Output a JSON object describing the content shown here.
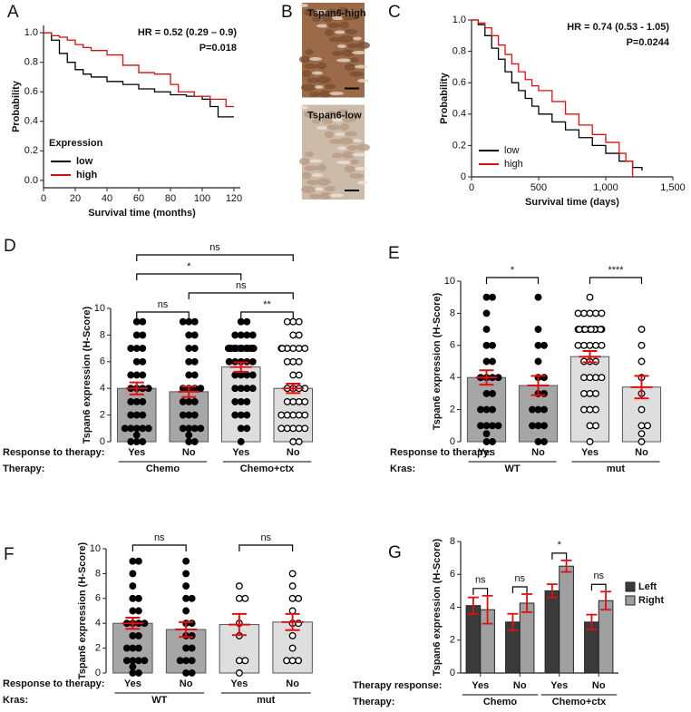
{
  "chart_data": [
    {
      "type": "line",
      "label": "A",
      "xlabel": "Survival time (months)",
      "ylabel": "Probability",
      "annotations": [
        "HR = 0.52 (0.29 – 0.9)",
        "P=0.018"
      ],
      "legend_title": "Expression",
      "legend": "lower left",
      "xlim": [
        0,
        124
      ],
      "ylim": [
        -0.05,
        1.05
      ],
      "xticks": [
        0,
        20,
        40,
        60,
        80,
        100,
        120
      ],
      "yticks": [
        {
          "value": 0,
          "label": "0.0"
        },
        0.2,
        0.4,
        0.6,
        0.8,
        {
          "value": 1,
          "label": "1.0"
        }
      ],
      "series": [
        {
          "name": "low",
          "color": "#000000",
          "x": [
            0,
            5,
            10,
            15,
            20,
            25,
            30,
            40,
            50,
            60,
            70,
            80,
            90,
            100,
            105,
            110,
            120
          ],
          "values": [
            1,
            0.95,
            0.86,
            0.8,
            0.75,
            0.72,
            0.7,
            0.67,
            0.65,
            0.62,
            0.6,
            0.58,
            0.57,
            0.55,
            0.5,
            0.43,
            0.43
          ]
        },
        {
          "name": "high",
          "color": "#cc1111",
          "x": [
            0,
            5,
            10,
            15,
            20,
            25,
            30,
            40,
            50,
            60,
            70,
            80,
            85,
            95,
            105,
            115,
            120
          ],
          "values": [
            1,
            0.98,
            0.97,
            0.95,
            0.92,
            0.9,
            0.88,
            0.85,
            0.78,
            0.73,
            0.72,
            0.65,
            0.6,
            0.57,
            0.55,
            0.5,
            0.5
          ]
        }
      ]
    },
    {
      "type": "image",
      "label": "B",
      "panels": [
        "Tspan6-high",
        "Tspan6-low"
      ]
    },
    {
      "type": "line",
      "label": "C",
      "xlabel": "Survival time (days)",
      "ylabel": "Probability",
      "annotations": [
        "HR = 0.74 (0.53 - 1.05)",
        "P=0.0244"
      ],
      "legend": "lower left",
      "xlim": [
        0,
        1500
      ],
      "ylim": [
        0,
        1
      ],
      "xticks": [
        0,
        500,
        {
          "value": 1000,
          "label": "1,000"
        },
        {
          "value": 1500,
          "label": "1,500"
        }
      ],
      "yticks": [
        0,
        0.2,
        0.4,
        0.6,
        0.8,
        {
          "value": 1,
          "label": "1.0"
        }
      ],
      "series": [
        {
          "name": "low",
          "color": "#000000",
          "x": [
            0,
            50,
            100,
            150,
            200,
            250,
            300,
            350,
            400,
            450,
            500,
            600,
            700,
            800,
            900,
            1000,
            1100,
            1200,
            1270
          ],
          "values": [
            1,
            0.97,
            0.9,
            0.82,
            0.75,
            0.67,
            0.6,
            0.55,
            0.5,
            0.45,
            0.4,
            0.35,
            0.3,
            0.25,
            0.2,
            0.15,
            0.1,
            0.06,
            0.04
          ]
        },
        {
          "name": "high",
          "color": "#dd1111",
          "x": [
            0,
            50,
            100,
            150,
            200,
            250,
            300,
            350,
            400,
            450,
            500,
            600,
            700,
            800,
            900,
            1000,
            1100,
            1150,
            1200
          ],
          "values": [
            1,
            0.98,
            0.95,
            0.9,
            0.84,
            0.78,
            0.72,
            0.67,
            0.62,
            0.58,
            0.55,
            0.48,
            0.4,
            0.33,
            0.27,
            0.22,
            0.15,
            0.1,
            0
          ]
        }
      ]
    },
    {
      "type": "bar",
      "label": "D",
      "ylabel": "Tspan6 expression (H-Score)",
      "ylim": [
        0,
        10
      ],
      "yticks": [
        0,
        2,
        4,
        6,
        8,
        10
      ],
      "row_labels": [
        "Response to therapy:",
        "Therapy:"
      ],
      "categories": [
        "Yes",
        "No",
        "Yes",
        "No"
      ],
      "groups": [
        "Chemo",
        "Chemo+ctx"
      ],
      "values": [
        4.0,
        3.75,
        5.6,
        4.0
      ],
      "errors": [
        0.45,
        0.4,
        0.35,
        0.35
      ],
      "error_color": "#dd1111",
      "colors": [
        "#a6a6a6",
        "#a6a6a6",
        "#dedede",
        "#dedede"
      ],
      "point_styles": [
        "filled",
        "filled",
        "filled",
        "open"
      ],
      "points": [
        [
          9,
          9,
          8,
          8,
          7,
          7,
          7,
          6,
          6,
          5,
          5,
          5,
          4,
          4,
          4,
          4,
          3,
          3,
          3,
          2,
          2,
          2,
          1,
          1,
          1,
          1,
          1,
          0.5,
          0,
          0,
          0
        ],
        [
          9,
          9,
          8,
          8,
          7,
          6,
          6,
          5,
          5,
          4,
          4,
          4,
          3,
          3,
          3,
          2,
          2,
          2,
          1,
          1,
          1,
          1,
          0.5,
          0,
          0,
          9,
          7,
          4
        ],
        [
          9,
          9,
          8,
          8,
          8,
          7,
          7,
          7,
          7,
          7,
          7,
          7,
          7,
          7,
          7,
          7,
          7,
          7,
          7,
          7,
          6,
          6,
          6,
          6,
          5,
          5,
          5,
          4,
          4,
          4,
          4,
          3,
          3,
          2,
          2,
          2,
          1,
          1,
          0,
          7,
          7,
          8,
          6,
          5,
          3
        ],
        [
          9,
          9,
          8,
          7,
          7,
          7,
          7,
          7,
          7,
          6,
          6,
          6,
          5,
          5,
          4,
          4,
          4,
          4,
          3,
          3,
          3,
          2,
          2,
          2,
          2,
          1,
          1,
          1,
          1,
          0,
          0,
          9,
          8,
          3,
          2,
          1
        ]
      ],
      "comparisons": [
        {
          "between": [
            0,
            1
          ],
          "label": "ns"
        },
        {
          "between": [
            2,
            3
          ],
          "label": "**"
        },
        {
          "between": [
            1,
            3
          ],
          "label": "ns"
        },
        {
          "between": [
            0,
            2
          ],
          "label": "*"
        },
        {
          "between": [
            0,
            3
          ],
          "label": "ns"
        }
      ]
    },
    {
      "type": "bar",
      "label": "E",
      "ylabel": "Tspan6 expression (H-Score)",
      "ylim": [
        0,
        10
      ],
      "yticks": [
        0,
        2,
        4,
        6,
        8,
        10
      ],
      "row_labels": [
        "Response to therapy:",
        "Kras:"
      ],
      "categories": [
        "Yes",
        "No",
        "Yes",
        "No"
      ],
      "groups": [
        "WT",
        "mut"
      ],
      "values": [
        4.0,
        3.5,
        5.3,
        3.4
      ],
      "errors": [
        0.45,
        0.6,
        0.35,
        0.7
      ],
      "error_color": "#dd1111",
      "colors": [
        "#a6a6a6",
        "#a6a6a6",
        "#dedede",
        "#dedede"
      ],
      "point_styles": [
        "filled",
        "filled",
        "open",
        "open"
      ],
      "points": [
        [
          9,
          9,
          8,
          7,
          6,
          6,
          5,
          5,
          4,
          4,
          4,
          4,
          3,
          3,
          2,
          2,
          2,
          1,
          1,
          1,
          1,
          0,
          0,
          0.5
        ],
        [
          9,
          7,
          6,
          6,
          5,
          4,
          4,
          3,
          3,
          2,
          2,
          2,
          1,
          1,
          1,
          0,
          0
        ],
        [
          9,
          8,
          8,
          8,
          8,
          7,
          7,
          7,
          7,
          7,
          7,
          7,
          7,
          7,
          6,
          6,
          6,
          6,
          5,
          5,
          5,
          4,
          4,
          4,
          3,
          3,
          3,
          2,
          2,
          2,
          1,
          1,
          0,
          7,
          8,
          6,
          4
        ],
        [
          7,
          6,
          5,
          4,
          3,
          2,
          1,
          1,
          0.5,
          0
        ]
      ],
      "comparisons": [
        {
          "between": [
            0,
            1
          ],
          "label": "*"
        },
        {
          "between": [
            2,
            3
          ],
          "label": "****"
        }
      ]
    },
    {
      "type": "bar",
      "label": "F",
      "ylabel": "Tspan6 expression (H-Score)",
      "ylim": [
        0,
        10
      ],
      "yticks": [
        0,
        2,
        4,
        6,
        8,
        10
      ],
      "row_labels": [
        "Response to therapy:",
        "Kras:"
      ],
      "categories": [
        "Yes",
        "No",
        "Yes",
        "No"
      ],
      "groups": [
        "WT",
        "mut"
      ],
      "values": [
        4.0,
        3.5,
        3.9,
        4.1
      ],
      "errors": [
        0.45,
        0.6,
        0.85,
        0.65
      ],
      "error_color": "#dd1111",
      "colors": [
        "#a6a6a6",
        "#a6a6a6",
        "#dedede",
        "#dedede"
      ],
      "point_styles": [
        "filled",
        "filled",
        "open",
        "open"
      ],
      "points": [
        [
          9,
          9,
          8,
          7,
          6,
          6,
          5,
          5,
          4,
          4,
          4,
          4,
          3,
          3,
          2,
          2,
          2,
          1,
          1,
          1,
          1,
          0,
          0,
          0.5
        ],
        [
          9,
          8,
          7,
          6,
          6,
          5,
          4,
          4,
          3,
          3,
          2,
          2,
          1,
          1,
          1,
          0,
          0
        ],
        [
          7,
          6,
          6,
          4,
          3,
          1,
          1,
          0
        ],
        [
          8,
          7,
          6,
          6,
          5,
          4,
          4,
          3,
          2,
          1,
          1,
          1
        ]
      ],
      "comparisons": [
        {
          "between": [
            0,
            1
          ],
          "label": "ns"
        },
        {
          "between": [
            2,
            3
          ],
          "label": "ns"
        }
      ]
    },
    {
      "type": "grouped_bar",
      "label": "G",
      "ylabel": "Tspan6 expression (H-Score)",
      "ylim": [
        0,
        8
      ],
      "yticks": [
        0,
        2,
        4,
        6,
        8
      ],
      "row_labels": [
        "Therapy response:",
        "Therapy:"
      ],
      "categories": [
        "Yes",
        "No",
        "Yes",
        "No"
      ],
      "groups": [
        "Chemo",
        "Chemo+ctx"
      ],
      "error_color": "#dd1111",
      "legend": "right",
      "series": [
        {
          "name": "Left",
          "color": "#3a3a3a",
          "values": [
            4.1,
            3.1,
            5.0,
            3.1
          ],
          "errors": [
            0.5,
            0.5,
            0.4,
            0.45
          ]
        },
        {
          "name": "Right",
          "color": "#a0a0a0",
          "values": [
            3.85,
            4.25,
            6.5,
            4.4
          ],
          "errors": [
            0.85,
            0.55,
            0.35,
            0.55
          ]
        }
      ],
      "comparisons": [
        "ns",
        "ns",
        "*",
        "ns"
      ]
    }
  ]
}
